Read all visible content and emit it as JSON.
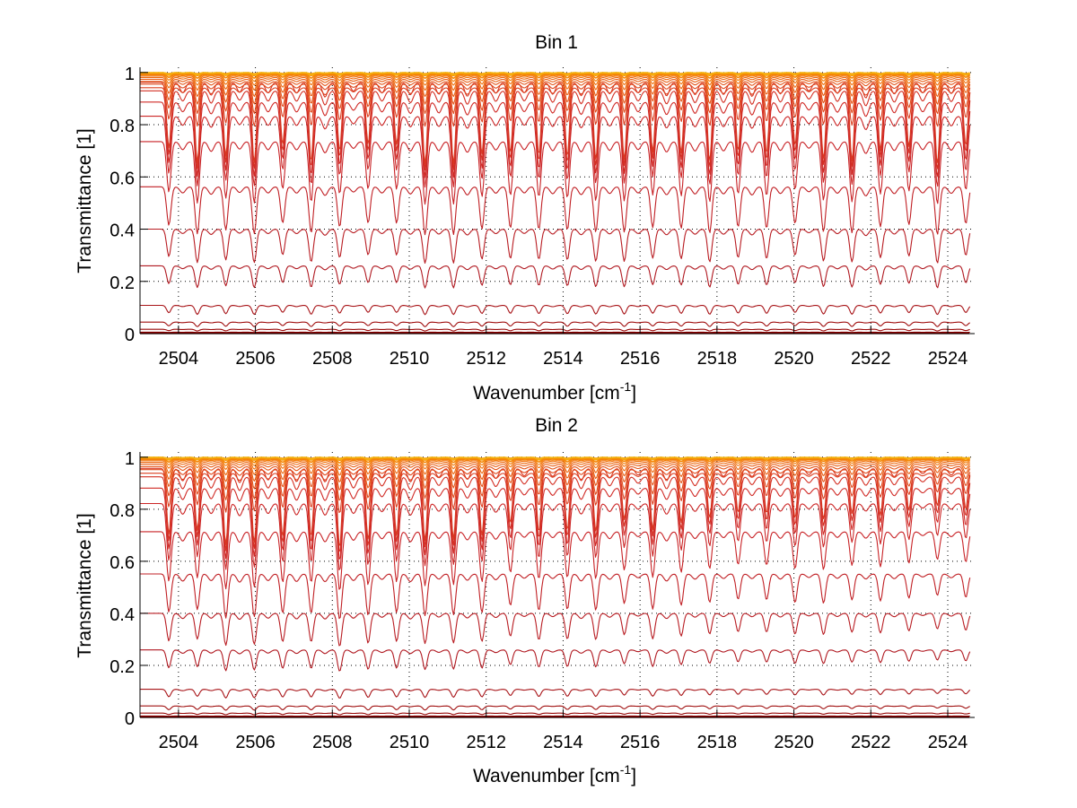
{
  "chart_data": [
    {
      "type": "line",
      "title": "Bin 1",
      "xlabel": "Wavenumber [cm",
      "xlabel_sup": "-1",
      "xlabel_end": "]",
      "ylabel": "Transmittance [1]",
      "xlim": [
        2503,
        2524.7
      ],
      "ylim": [
        0,
        1.02
      ],
      "xticks": [
        2504,
        2506,
        2508,
        2510,
        2512,
        2514,
        2516,
        2518,
        2520,
        2522,
        2524
      ],
      "xtick_labels": [
        "2504",
        "2506",
        "2508",
        "2510",
        "2512",
        "2514",
        "2516",
        "2518",
        "2520",
        "2522",
        "2524"
      ],
      "yticks": [
        0,
        0.2,
        0.4,
        0.6,
        0.8,
        1
      ],
      "ytick_labels": [
        "0",
        "0.2",
        "0.4",
        "0.6",
        "0.8",
        "1"
      ],
      "grid": true,
      "line_spacing_cm-1": 0.74,
      "first_line_cm-1": 2503.75,
      "strength_decay": 0.0,
      "series_baselines": [
        0.005,
        0.015,
        0.04,
        0.1,
        0.24,
        0.37,
        0.52,
        0.68,
        0.77,
        0.82,
        0.86,
        0.89,
        0.915,
        0.935,
        0.95,
        0.962,
        0.972,
        0.98,
        0.986,
        0.991,
        0.995,
        0.998,
        1.0
      ],
      "series_colors": [
        "#8b0000",
        "#990a0a",
        "#a01010",
        "#a81418",
        "#b01820",
        "#b81c22",
        "#c01f24",
        "#c82226",
        "#cc2626",
        "#d02a26",
        "#d43024",
        "#d83822",
        "#dc4020",
        "#e04a1c",
        "#e45418",
        "#e85e14",
        "#ec6810",
        "#f0720c",
        "#f27c08",
        "#f48606",
        "#f69004",
        "#f89a04",
        "#f4b410"
      ]
    },
    {
      "type": "line",
      "title": "Bin 2",
      "xlabel": "Wavenumber [cm",
      "xlabel_sup": "-1",
      "xlabel_end": "]",
      "ylabel": "Transmittance [1]",
      "xlim": [
        2503,
        2524.7
      ],
      "ylim": [
        0,
        1.02
      ],
      "xticks": [
        2504,
        2506,
        2508,
        2510,
        2512,
        2514,
        2516,
        2518,
        2520,
        2522,
        2524
      ],
      "xtick_labels": [
        "2504",
        "2506",
        "2508",
        "2510",
        "2512",
        "2514",
        "2516",
        "2518",
        "2520",
        "2522",
        "2524"
      ],
      "yticks": [
        0,
        0.2,
        0.4,
        0.6,
        0.8,
        1
      ],
      "ytick_labels": [
        "0",
        "0.2",
        "0.4",
        "0.6",
        "0.8",
        "1"
      ],
      "grid": true,
      "line_spacing_cm-1": 0.74,
      "first_line_cm-1": 2503.75,
      "strength_decay": 0.55,
      "series_baselines": [
        0.005,
        0.015,
        0.04,
        0.1,
        0.24,
        0.37,
        0.51,
        0.66,
        0.76,
        0.815,
        0.855,
        0.885,
        0.91,
        0.93,
        0.947,
        0.96,
        0.971,
        0.98,
        0.986,
        0.991,
        0.995,
        0.998,
        1.0
      ],
      "series_colors": [
        "#8b0000",
        "#990a0a",
        "#a01010",
        "#a81418",
        "#b01820",
        "#b81c22",
        "#c01f24",
        "#c82226",
        "#cc2626",
        "#d02a26",
        "#d43024",
        "#d83822",
        "#dc4020",
        "#e04a1c",
        "#e45418",
        "#e85e14",
        "#ec6810",
        "#f0720c",
        "#f27c08",
        "#f48606",
        "#f69004",
        "#f89a04",
        "#f4b410"
      ]
    }
  ]
}
